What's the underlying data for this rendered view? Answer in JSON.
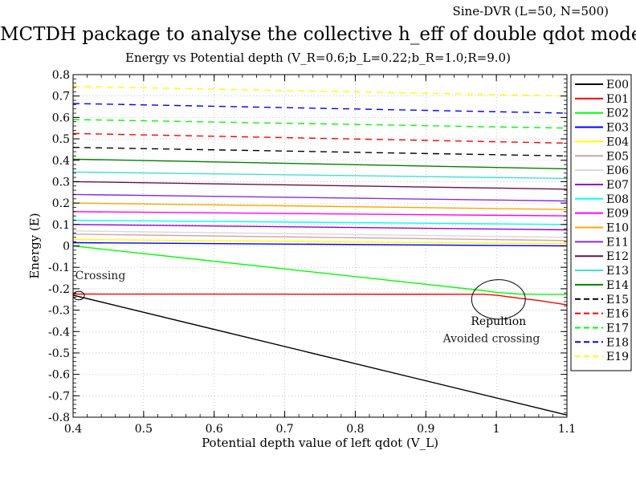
{
  "header": {
    "corner_note": "Sine-DVR (L=50, N=500)",
    "title": "MCTDH package to analyse the collective h_eff of double qdot model",
    "subtitle": "Energy vs Potential depth (V_R=0.6;b_L=0.22;b_R=1.0;R=9.0)"
  },
  "chart_data": {
    "type": "line",
    "title": "MCTDH package to analyse the collective h_eff of double qdot model",
    "subtitle": "Energy vs Potential depth (V_R=0.6;b_L=0.22;b_R=1.0;R=9.0)",
    "xlabel": "Potential depth value of left qdot (V_L)",
    "ylabel": "Energy (E)",
    "xlim": [
      0.4,
      1.1
    ],
    "ylim": [
      -0.8,
      0.8
    ],
    "xticks": [
      "0.4",
      "0.5",
      "0.6",
      "0.7",
      "0.8",
      "0.9",
      "1",
      "1.1"
    ],
    "yticks": [
      "-0.8",
      "-0.7",
      "-0.6",
      "-0.5",
      "-0.4",
      "-0.3",
      "-0.2",
      "-0.1",
      "0",
      "0.1",
      "0.2",
      "0.3",
      "0.4",
      "0.5",
      "0.6",
      "0.7",
      "0.8"
    ],
    "grid": true,
    "legend_position": "right",
    "series": [
      {
        "name": "E00",
        "color": "#000000",
        "dash": "solid",
        "x": [
          0.4,
          1.1
        ],
        "y": [
          -0.23,
          -0.79
        ]
      },
      {
        "name": "E01",
        "color": "#ff0000",
        "dash": "solid",
        "x": [
          0.4,
          0.98,
          1.0,
          1.03,
          1.06,
          1.1
        ],
        "y": [
          -0.225,
          -0.226,
          -0.23,
          -0.243,
          -0.255,
          -0.275
        ]
      },
      {
        "name": "E02",
        "color": "#00ff00",
        "dash": "solid",
        "x": [
          0.4,
          0.98,
          1.0,
          1.03,
          1.06,
          1.1
        ],
        "y": [
          0.0,
          -0.208,
          -0.217,
          -0.225,
          -0.226,
          -0.227
        ]
      },
      {
        "name": "E03",
        "color": "#0000ff",
        "dash": "solid",
        "x": [
          0.4,
          1.1
        ],
        "y": [
          0.015,
          0.0
        ]
      },
      {
        "name": "E04",
        "color": "#ffff00",
        "dash": "solid",
        "x": [
          0.4,
          1.1
        ],
        "y": [
          0.03,
          0.01
        ]
      },
      {
        "name": "E05",
        "color": "#d4a0a0",
        "dash": "solid",
        "x": [
          0.4,
          1.1
        ],
        "y": [
          0.055,
          0.025
        ]
      },
      {
        "name": "E06",
        "color": "#d8d8d8",
        "dash": "solid",
        "x": [
          0.4,
          1.1
        ],
        "y": [
          0.07,
          0.04
        ]
      },
      {
        "name": "E07",
        "color": "#9400d3",
        "dash": "solid",
        "x": [
          0.4,
          1.1
        ],
        "y": [
          0.1,
          0.075
        ]
      },
      {
        "name": "E08",
        "color": "#00ffff",
        "dash": "solid",
        "x": [
          0.4,
          1.1
        ],
        "y": [
          0.12,
          0.1
        ]
      },
      {
        "name": "E09",
        "color": "#ff00ff",
        "dash": "solid",
        "x": [
          0.4,
          1.1
        ],
        "y": [
          0.16,
          0.14
        ]
      },
      {
        "name": "E10",
        "color": "#ffa500",
        "dash": "solid",
        "x": [
          0.4,
          1.1
        ],
        "y": [
          0.2,
          0.17
        ]
      },
      {
        "name": "E11",
        "color": "#8a2be2",
        "dash": "solid",
        "x": [
          0.4,
          1.1
        ],
        "y": [
          0.24,
          0.21
        ]
      },
      {
        "name": "E12",
        "color": "#6b0f4f",
        "dash": "solid",
        "x": [
          0.4,
          1.1
        ],
        "y": [
          0.3,
          0.265
        ]
      },
      {
        "name": "E13",
        "color": "#40e0d0",
        "dash": "solid",
        "x": [
          0.4,
          1.1
        ],
        "y": [
          0.345,
          0.315
        ]
      },
      {
        "name": "E14",
        "color": "#008000",
        "dash": "solid",
        "x": [
          0.4,
          1.1
        ],
        "y": [
          0.405,
          0.36
        ]
      },
      {
        "name": "E15",
        "color": "#000000",
        "dash": "dashed",
        "x": [
          0.4,
          1.1
        ],
        "y": [
          0.46,
          0.42
        ]
      },
      {
        "name": "E16",
        "color": "#ff0000",
        "dash": "dashed",
        "x": [
          0.4,
          1.1
        ],
        "y": [
          0.525,
          0.48
        ]
      },
      {
        "name": "E17",
        "color": "#00ff00",
        "dash": "dashed",
        "x": [
          0.4,
          1.1
        ],
        "y": [
          0.59,
          0.55
        ]
      },
      {
        "name": "E18",
        "color": "#0000ff",
        "dash": "dashed",
        "x": [
          0.4,
          1.1
        ],
        "y": [
          0.665,
          0.62
        ]
      },
      {
        "name": "E19",
        "color": "#ffff00",
        "dash": "dashed",
        "x": [
          0.4,
          1.1
        ],
        "y": [
          0.745,
          0.7
        ]
      }
    ],
    "annotations": [
      {
        "text": "Crossing",
        "x": 0.403,
        "y": -0.155,
        "anchor": "start",
        "fill": "#222222"
      },
      {
        "text": "Repultion",
        "x": 1.003,
        "y": -0.37,
        "anchor": "middle",
        "fill": "#000000"
      },
      {
        "text": "Avoided crossing",
        "x": 0.993,
        "y": -0.45,
        "anchor": "middle",
        "fill": "#222222"
      }
    ],
    "markers": [
      {
        "type": "ellipse",
        "x": 0.408,
        "y": -0.232,
        "rx": 0.008,
        "ry": 0.02
      },
      {
        "type": "ellipse",
        "x": 1.003,
        "y": -0.25,
        "rx": 0.038,
        "ry": 0.092
      }
    ]
  }
}
